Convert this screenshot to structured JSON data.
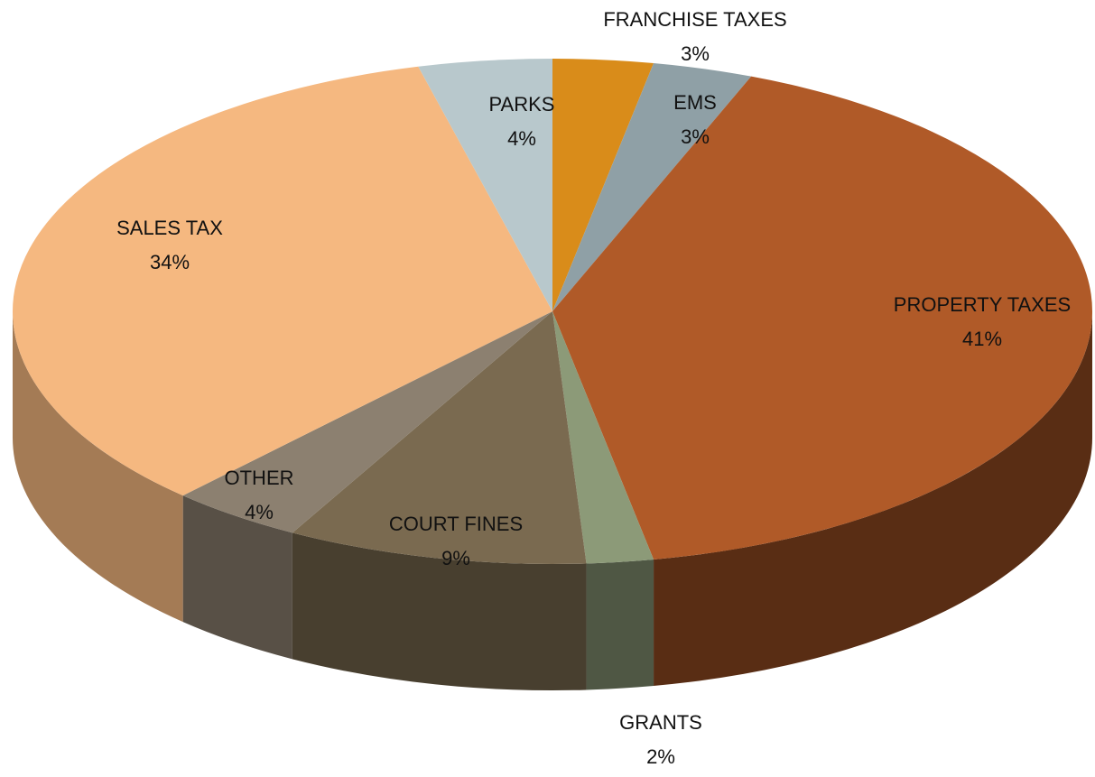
{
  "chart_data": {
    "type": "pie",
    "categories": [
      "FRANCHISE TAXES",
      "EMS",
      "PROPERTY TAXES",
      "GRANTS",
      "COURT FINES",
      "OTHER",
      "SALES TAX",
      "PARKS"
    ],
    "values": [
      3,
      3,
      41,
      2,
      9,
      4,
      34,
      4
    ],
    "value_labels": [
      "3%",
      "3%",
      "41%",
      "2%",
      "9%",
      "4%",
      "34%",
      "4%"
    ],
    "colors": [
      "#d98c1a",
      "#8fa0a6",
      "#b05a28",
      "#8c9a78",
      "#7a6a50",
      "#8c8070",
      "#f5b880",
      "#b8c8cc"
    ]
  }
}
